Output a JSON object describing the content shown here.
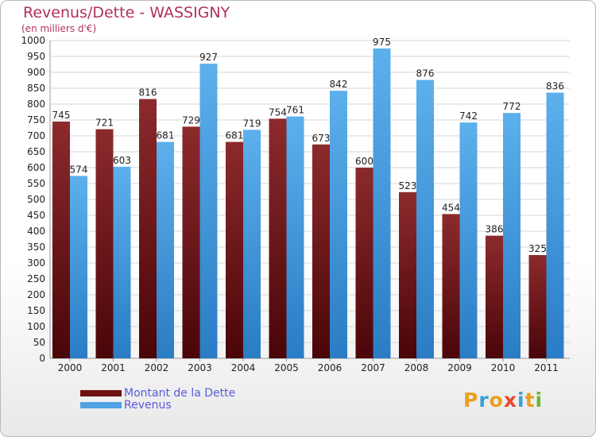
{
  "chart_data": {
    "type": "bar",
    "title": "Revenus/Dette - WASSIGNY",
    "subtitle": "(en milliers d'€)",
    "categories": [
      "2000",
      "2001",
      "2002",
      "2003",
      "2004",
      "2005",
      "2006",
      "2007",
      "2008",
      "2009",
      "2010",
      "2011"
    ],
    "series": [
      {
        "name": "Montant de la Dette",
        "color": "#7a1c1f",
        "values": [
          745,
          721,
          816,
          729,
          681,
          754,
          673,
          600,
          523,
          454,
          386,
          325
        ]
      },
      {
        "name": "Revenus",
        "color": "#4fa3e3",
        "values": [
          574,
          603,
          681,
          927,
          719,
          761,
          842,
          975,
          876,
          742,
          772,
          836
        ]
      }
    ],
    "ylim": [
      0,
      1000
    ],
    "ytick_step": 50,
    "grid": true,
    "legend_position": "bottom-left"
  },
  "logo": {
    "text": "Proxiti",
    "colors": [
      "#e8a020",
      "#3aa0d8",
      "#e8a020",
      "#e84830",
      "#3aa0d8",
      "#e8a020",
      "#6ab830"
    ]
  }
}
